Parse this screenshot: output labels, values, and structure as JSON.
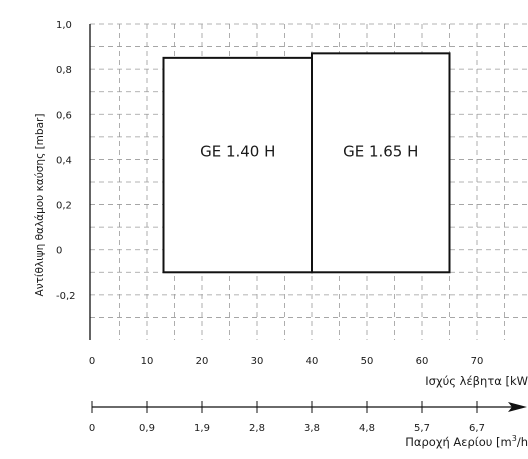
{
  "chart_data": {
    "type": "area",
    "title": "",
    "ylabel": "Αντίθλιψη θαλάμου καύσης [mbar]",
    "xlabel": "Ισχύς λέβητα [kW",
    "x2label": "Παροχή Αερίου [m³/h",
    "y_ticks": [
      "1,0",
      "0,8",
      "0,6",
      "0,4",
      "0,2",
      "0",
      "-0,2"
    ],
    "y_tick_values": [
      1.0,
      0.8,
      0.6,
      0.4,
      0.2,
      0.0,
      -0.2
    ],
    "ylim": [
      -0.4,
      1.0
    ],
    "x_ticks": [
      "0",
      "10",
      "20",
      "30",
      "40",
      "50",
      "60",
      "70"
    ],
    "x_tick_values": [
      0,
      10,
      20,
      30,
      40,
      50,
      60,
      70
    ],
    "xlim": [
      0,
      75
    ],
    "x2_ticks": [
      "0",
      "0,9",
      "1,9",
      "2,8",
      "3,8",
      "4,8",
      "5,7",
      "6,7"
    ],
    "x2_tick_values": [
      0,
      10,
      20,
      30,
      40,
      50,
      60,
      70
    ],
    "grid": true,
    "series": [
      {
        "name": "GE 1.40 H",
        "x": [
          13,
          40
        ],
        "y": [
          -0.1,
          0.85
        ]
      },
      {
        "name": "GE 1.65 H",
        "x": [
          40,
          65
        ],
        "y": [
          -0.1,
          0.87
        ]
      }
    ]
  }
}
